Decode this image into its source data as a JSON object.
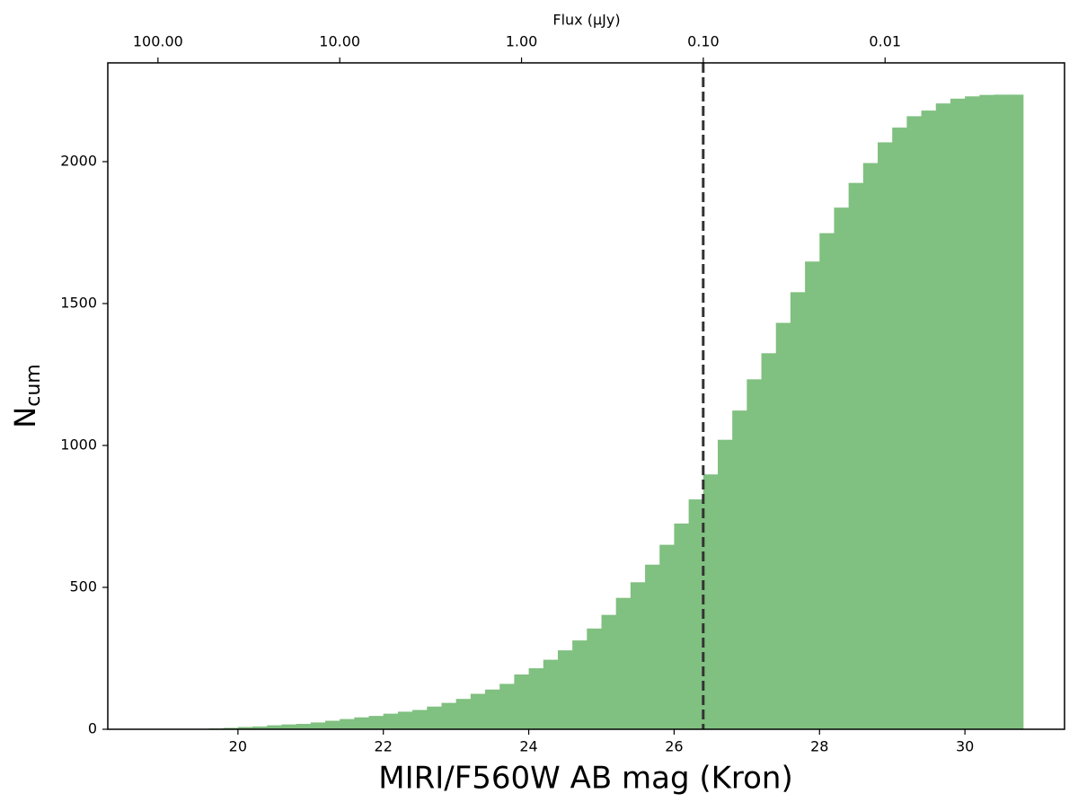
{
  "chart_data": {
    "type": "histogram",
    "xlabel": "MIRI/F560W AB mag (Kron)",
    "ylabel": "N",
    "ylabel_sub": "cum",
    "x2label": "Flux (μJy)",
    "color": "#80c080",
    "bins": [
      19.0,
      19.2,
      19.4,
      19.6,
      19.8,
      20.0,
      20.2,
      20.4,
      20.6,
      20.8,
      21.0,
      21.2,
      21.4,
      21.6,
      21.8,
      22.0,
      22.2,
      22.4,
      22.6,
      22.8,
      23.0,
      23.2,
      23.4,
      23.6,
      23.8,
      24.0,
      24.2,
      24.4,
      24.6,
      24.8,
      25.0,
      25.2,
      25.4,
      25.6,
      25.8,
      26.0,
      26.2,
      26.4,
      26.6,
      26.8,
      27.0,
      27.2,
      27.4,
      27.6,
      27.8,
      28.0,
      28.2,
      28.4,
      28.6,
      28.8,
      29.0,
      29.2,
      29.4,
      29.6,
      29.8,
      30.0,
      30.2,
      30.4,
      30.6,
      30.8
    ],
    "values": [
      0,
      0,
      0,
      3,
      5,
      8,
      10,
      14,
      17,
      19,
      24,
      30,
      36,
      42,
      47,
      55,
      62,
      68,
      80,
      93,
      107,
      125,
      140,
      160,
      193,
      215,
      245,
      278,
      313,
      355,
      403,
      463,
      518,
      580,
      650,
      725,
      810,
      898,
      1020,
      1123,
      1233,
      1325,
      1432,
      1540,
      1648,
      1748,
      1838,
      1925,
      1995,
      2068,
      2120,
      2160,
      2180,
      2205,
      2222,
      2230,
      2235,
      2236,
      2236
    ],
    "xlim": [
      18.21,
      31.37
    ],
    "xticks": [
      20,
      22,
      24,
      26,
      28,
      30
    ],
    "ylim": [
      0,
      2348
    ],
    "yticks": [
      0,
      500,
      1000,
      1500,
      2000
    ],
    "x2lim": [
      188.8,
      0.00103
    ],
    "x2log": true,
    "x2ticks": [
      {
        "value": 100,
        "label": "100.00"
      },
      {
        "value": 10,
        "label": "10.00"
      },
      {
        "value": 1,
        "label": "1.00"
      },
      {
        "value": 0.1,
        "label": "0.10"
      },
      {
        "value": 0.01,
        "label": "0.01"
      }
    ],
    "vline": 26.4,
    "vline_color": "#333333"
  }
}
